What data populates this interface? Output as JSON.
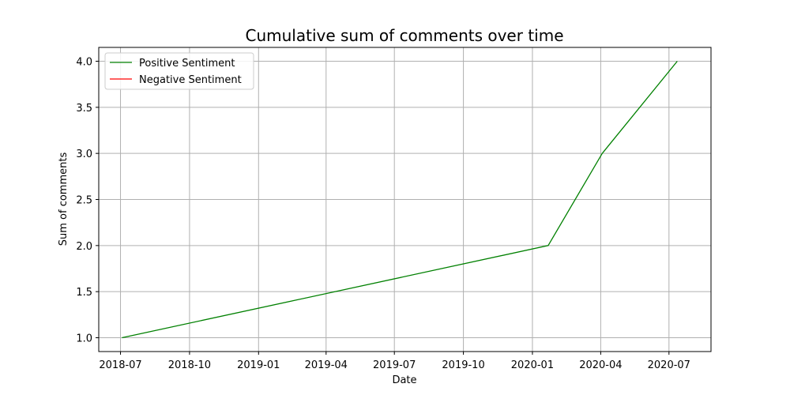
{
  "chart_data": {
    "type": "line",
    "title": "Cumulative sum of comments over time",
    "xlabel": "Date",
    "ylabel": "Sum of comments",
    "xlim": [
      "2018-06-02",
      "2020-08-26"
    ],
    "ylim": [
      0.85,
      4.15
    ],
    "x_ticks": [
      "2018-07-01",
      "2018-10-01",
      "2019-01-01",
      "2019-04-01",
      "2019-07-01",
      "2019-10-01",
      "2020-01-01",
      "2020-04-01",
      "2020-07-01"
    ],
    "x_tick_labels": [
      "2018-07",
      "2018-10",
      "2019-01",
      "2019-04",
      "2019-07",
      "2019-10",
      "2020-01",
      "2020-04",
      "2020-07"
    ],
    "y_ticks": [
      1.0,
      1.5,
      2.0,
      2.5,
      3.0,
      3.5,
      4.0
    ],
    "y_tick_labels": [
      "1.0",
      "1.5",
      "2.0",
      "2.5",
      "3.0",
      "3.5",
      "4.0"
    ],
    "grid": true,
    "legend_position": "top-left",
    "series": [
      {
        "name": "Positive Sentiment",
        "color": "#008000",
        "points": [
          {
            "x": "2018-07-03",
            "y": 1
          },
          {
            "x": "2020-01-22",
            "y": 2
          },
          {
            "x": "2020-04-03",
            "y": 3
          },
          {
            "x": "2020-07-12",
            "y": 4
          }
        ]
      },
      {
        "name": "Negative Sentiment",
        "color": "#ff0000",
        "points": []
      }
    ]
  }
}
